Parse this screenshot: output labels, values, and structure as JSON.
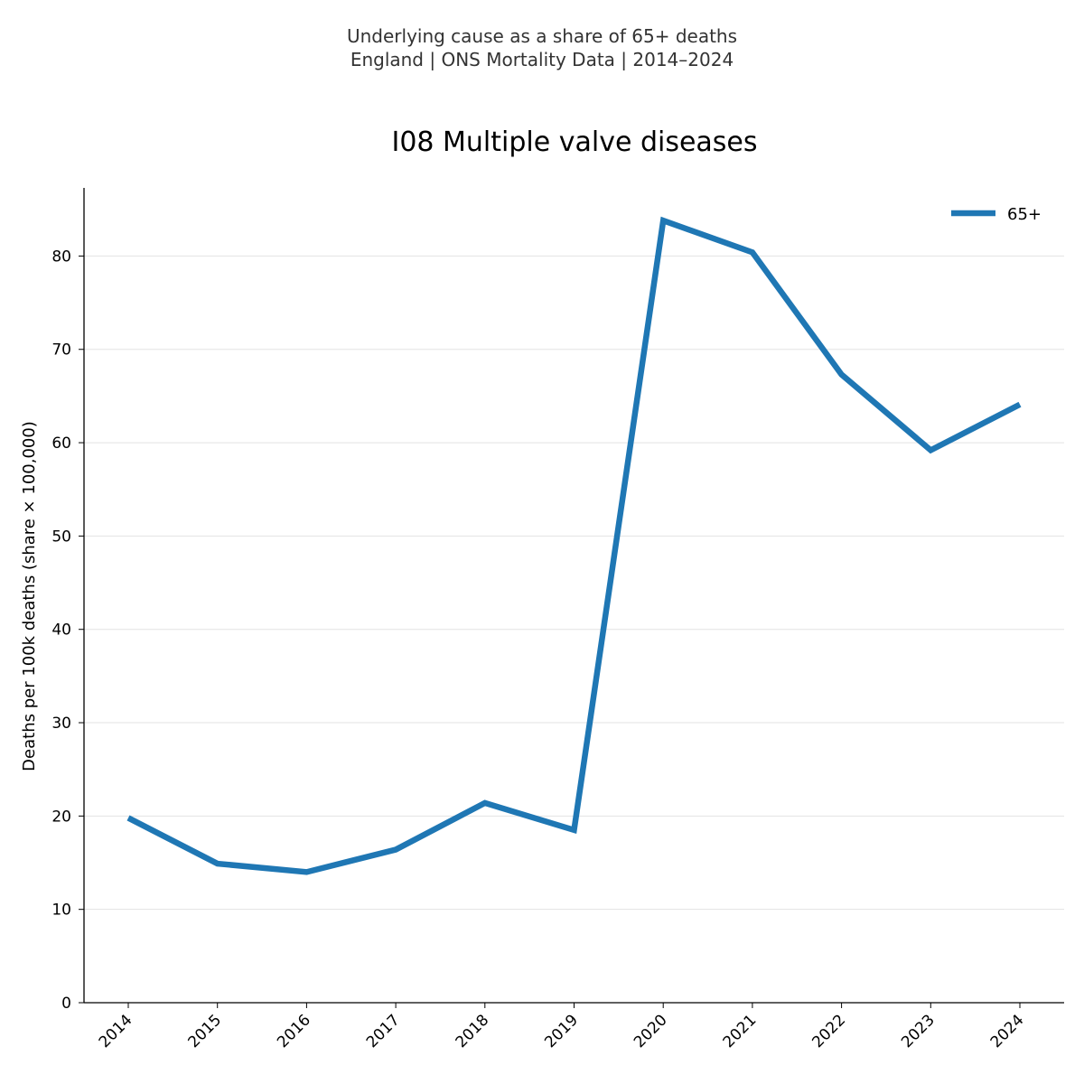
{
  "header": {
    "subtitle_line1": "Underlying cause as a share of 65+ deaths",
    "subtitle_line2": "England | ONS Mortality Data | 2014–2024"
  },
  "chart_data": {
    "type": "line",
    "title": "I08 Multiple valve diseases",
    "xlabel": "",
    "ylabel": "Deaths per 100k deaths (share × 100,000)",
    "categories": [
      "2014",
      "2015",
      "2016",
      "2017",
      "2018",
      "2019",
      "2020",
      "2021",
      "2022",
      "2023",
      "2024"
    ],
    "yticks": [
      "0",
      "10",
      "20",
      "30",
      "40",
      "50",
      "60",
      "70",
      "80"
    ],
    "ylim": [
      0,
      87.3
    ],
    "grid": "horizontal",
    "legend_position": "top-right",
    "series": [
      {
        "name": "65+",
        "color": "#1f77b4",
        "values": [
          19.8,
          14.9,
          14.0,
          16.4,
          21.4,
          18.5,
          83.8,
          80.4,
          67.3,
          59.2,
          64.1
        ]
      }
    ]
  }
}
